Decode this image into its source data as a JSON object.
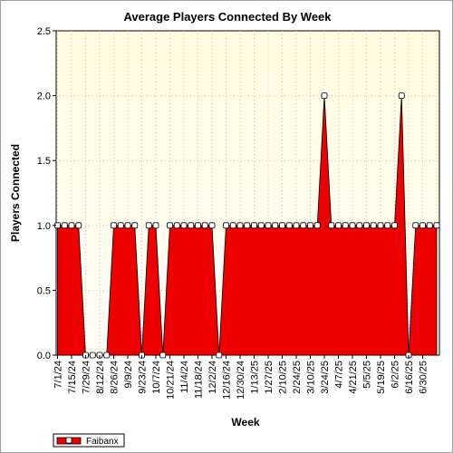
{
  "chart_data": {
    "type": "area",
    "title": "Average Players Connected By Week",
    "xlabel": "Week",
    "ylabel": "Players Connected",
    "ylim": [
      0,
      2.5
    ],
    "y_ticks": [
      "0.0",
      "0.5",
      "1.0",
      "1.5",
      "2.0",
      "2.5"
    ],
    "grid": true,
    "legend_position": "bottom-left",
    "x_tick_labels": [
      "7/1/24",
      "7/15/24",
      "7/29/24",
      "8/12/24",
      "8/26/24",
      "9/9/24",
      "9/23/24",
      "10/7/24",
      "10/21/24",
      "11/4/24",
      "11/18/24",
      "12/2/24",
      "12/16/24",
      "12/30/24",
      "1/13/25",
      "1/27/25",
      "2/10/25",
      "2/24/25",
      "3/10/25",
      "3/24/25",
      "4/7/25",
      "4/21/25",
      "5/5/25",
      "5/19/25",
      "6/2/25",
      "6/16/25",
      "6/30/25"
    ],
    "series": [
      {
        "name": "Faibanx",
        "color": "#ee0000",
        "values": [
          1,
          1,
          1,
          1,
          0,
          0,
          0,
          0,
          1,
          1,
          1,
          1,
          0,
          1,
          1,
          0,
          1,
          1,
          1,
          1,
          1,
          1,
          1,
          0,
          1,
          1,
          1,
          1,
          1,
          1,
          1,
          1,
          1,
          1,
          1,
          1,
          1,
          1,
          2,
          1,
          1,
          1,
          1,
          1,
          1,
          1,
          1,
          1,
          1,
          2,
          0,
          1,
          1,
          1,
          1
        ]
      }
    ]
  }
}
